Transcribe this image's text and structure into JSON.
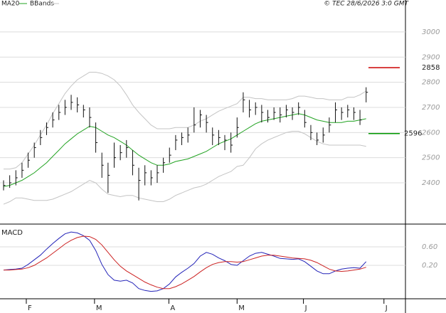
{
  "chart_data": [
    {
      "type": "ohlc",
      "close": [
        2390,
        2400,
        2420,
        2450,
        2490,
        2540,
        2580,
        2620,
        2650,
        2680,
        2700,
        2720,
        2710,
        2690,
        2660,
        2560,
        2470,
        2430,
        2500,
        2520,
        2540,
        2470,
        2410,
        2440,
        2420,
        2440,
        2480,
        2510,
        2570,
        2580,
        2590,
        2630,
        2670,
        2640,
        2590,
        2580,
        2570,
        2550,
        2620,
        2730,
        2690,
        2700,
        2680,
        2660,
        2680,
        2670,
        2690,
        2680,
        2700,
        2640,
        2600,
        2570,
        2590,
        2630,
        2690,
        2680,
        2690,
        2680,
        2650,
        2760
      ],
      "high": [
        2410,
        2430,
        2450,
        2480,
        2520,
        2560,
        2610,
        2640,
        2680,
        2710,
        2730,
        2750,
        2740,
        2710,
        2700,
        2640,
        2520,
        2480,
        2560,
        2550,
        2570,
        2530,
        2460,
        2470,
        2450,
        2470,
        2500,
        2540,
        2590,
        2600,
        2620,
        2700,
        2690,
        2670,
        2620,
        2610,
        2590,
        2600,
        2660,
        2760,
        2730,
        2720,
        2710,
        2690,
        2700,
        2700,
        2710,
        2700,
        2720,
        2690,
        2630,
        2600,
        2620,
        2660,
        2720,
        2700,
        2710,
        2700,
        2690,
        2780
      ],
      "low": [
        2370,
        2380,
        2390,
        2420,
        2460,
        2500,
        2550,
        2590,
        2620,
        2650,
        2670,
        2690,
        2680,
        2660,
        2620,
        2520,
        2420,
        2360,
        2460,
        2490,
        2500,
        2430,
        2330,
        2390,
        2390,
        2400,
        2440,
        2480,
        2530,
        2550,
        2560,
        2600,
        2620,
        2600,
        2550,
        2550,
        2530,
        2520,
        2580,
        2680,
        2660,
        2670,
        2640,
        2640,
        2650,
        2640,
        2660,
        2650,
        2670,
        2620,
        2570,
        2550,
        2560,
        2600,
        2640,
        2650,
        2660,
        2650,
        2630,
        2720
      ],
      "series": [
        {
          "name": "MA20",
          "color": "#22a322",
          "values": [
            2385,
            2390,
            2400,
            2410,
            2425,
            2440,
            2460,
            2480,
            2505,
            2530,
            2555,
            2575,
            2595,
            2610,
            2625,
            2620,
            2605,
            2590,
            2580,
            2565,
            2550,
            2530,
            2510,
            2495,
            2480,
            2470,
            2470,
            2475,
            2485,
            2490,
            2495,
            2505,
            2515,
            2525,
            2540,
            2555,
            2565,
            2575,
            2590,
            2605,
            2620,
            2635,
            2645,
            2650,
            2655,
            2660,
            2665,
            2670,
            2675,
            2670,
            2660,
            2650,
            2645,
            2640,
            2640,
            2640,
            2645,
            2645,
            2650,
            2655
          ]
        },
        {
          "name": "BBands",
          "color": "#c4c4c4",
          "upper": [
            2455,
            2455,
            2460,
            2480,
            2515,
            2550,
            2590,
            2630,
            2675,
            2715,
            2755,
            2785,
            2810,
            2825,
            2840,
            2840,
            2835,
            2825,
            2810,
            2785,
            2750,
            2710,
            2680,
            2655,
            2630,
            2615,
            2615,
            2615,
            2620,
            2620,
            2620,
            2630,
            2645,
            2655,
            2670,
            2685,
            2695,
            2705,
            2715,
            2740,
            2740,
            2735,
            2735,
            2730,
            2730,
            2730,
            2730,
            2735,
            2745,
            2745,
            2740,
            2735,
            2735,
            2730,
            2730,
            2730,
            2740,
            2740,
            2750,
            2765
          ],
          "lower": [
            2315,
            2325,
            2340,
            2340,
            2335,
            2330,
            2330,
            2330,
            2335,
            2345,
            2355,
            2365,
            2380,
            2395,
            2410,
            2400,
            2375,
            2355,
            2350,
            2345,
            2350,
            2350,
            2340,
            2335,
            2330,
            2325,
            2325,
            2335,
            2350,
            2360,
            2370,
            2380,
            2385,
            2395,
            2410,
            2425,
            2435,
            2445,
            2465,
            2470,
            2500,
            2535,
            2555,
            2570,
            2580,
            2590,
            2600,
            2605,
            2605,
            2595,
            2580,
            2565,
            2555,
            2550,
            2550,
            2550,
            2550,
            2550,
            2550,
            2545
          ]
        }
      ],
      "markers": [
        {
          "value": 2858,
          "color": "#cc0000"
        },
        {
          "value": 2596,
          "color": "#009900"
        }
      ],
      "ylim": [
        2236,
        3127
      ],
      "yticks": [
        2400,
        2500,
        2600,
        2700,
        2800,
        2900,
        3000
      ],
      "grid": true,
      "annotation": "© TEC 28/6/2026 3:0 GMT"
    },
    {
      "type": "line",
      "title": "MACD",
      "series": [
        {
          "color": "#2323b8",
          "values": [
            0.1,
            0.11,
            0.12,
            0.14,
            0.22,
            0.32,
            0.42,
            0.55,
            0.67,
            0.78,
            0.88,
            0.92,
            0.9,
            0.84,
            0.74,
            0.52,
            0.22,
            0.0,
            -0.12,
            -0.14,
            -0.12,
            -0.18,
            -0.3,
            -0.34,
            -0.36,
            -0.35,
            -0.3,
            -0.2,
            -0.05,
            0.05,
            0.14,
            0.24,
            0.4,
            0.48,
            0.44,
            0.36,
            0.3,
            0.22,
            0.2,
            0.3,
            0.4,
            0.46,
            0.48,
            0.44,
            0.4,
            0.35,
            0.34,
            0.33,
            0.34,
            0.28,
            0.18,
            0.08,
            0.02,
            0.02,
            0.08,
            0.12,
            0.14,
            0.15,
            0.14,
            0.28
          ]
        },
        {
          "color": "#cc2222",
          "values": [
            0.1,
            0.1,
            0.11,
            0.12,
            0.15,
            0.2,
            0.28,
            0.36,
            0.46,
            0.56,
            0.66,
            0.74,
            0.8,
            0.83,
            0.82,
            0.76,
            0.64,
            0.48,
            0.32,
            0.18,
            0.08,
            0.0,
            -0.08,
            -0.16,
            -0.22,
            -0.27,
            -0.3,
            -0.3,
            -0.26,
            -0.2,
            -0.12,
            -0.04,
            0.06,
            0.15,
            0.22,
            0.26,
            0.28,
            0.28,
            0.27,
            0.28,
            0.32,
            0.36,
            0.4,
            0.42,
            0.42,
            0.4,
            0.38,
            0.36,
            0.35,
            0.34,
            0.31,
            0.26,
            0.19,
            0.12,
            0.08,
            0.07,
            0.08,
            0.1,
            0.12,
            0.16
          ]
        }
      ],
      "ylim": [
        -0.52,
        1.09
      ],
      "yticks": [
        {
          "value": 0.2,
          "label": "0.20"
        },
        {
          "value": 0.6,
          "label": "0.60"
        }
      ],
      "grid": true,
      "xlim": [
        -0.58,
        65.4
      ],
      "xticks": [
        {
          "value": 3.7,
          "label": "F"
        },
        {
          "value": 14.8,
          "label": "M"
        },
        {
          "value": 26.9,
          "label": "A"
        },
        {
          "value": 38,
          "label": "M"
        },
        {
          "value": 48.8,
          "label": "J"
        },
        {
          "value": 61.9,
          "label": "J"
        }
      ]
    }
  ]
}
